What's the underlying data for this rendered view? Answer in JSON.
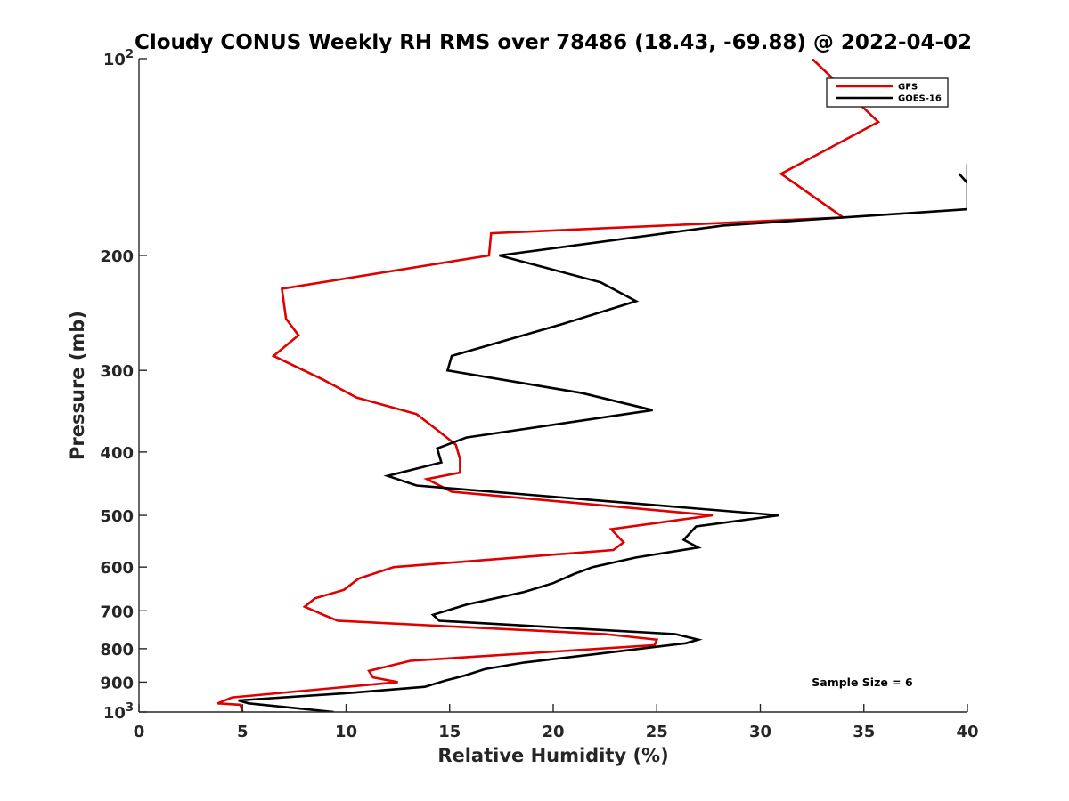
{
  "chart_data": {
    "type": "line",
    "title": "Cloudy CONUS Weekly RH RMS over 78486 (18.43, -69.88) @ 2022-04-02",
    "xlabel": "Relative Humidity (%)",
    "ylabel": "Pressure (mb)",
    "xlim": [
      0,
      40
    ],
    "ylim": [
      100,
      1000
    ],
    "y_scale": "log",
    "y_reversed": true,
    "x_ticks": [
      "0",
      "5",
      "10",
      "15",
      "20",
      "25",
      "30",
      "35",
      "40"
    ],
    "y_ticks": [
      {
        "value": 100,
        "base": "10",
        "exp": "2"
      },
      {
        "value": 200,
        "label": "200"
      },
      {
        "value": 300,
        "label": "300"
      },
      {
        "value": 400,
        "label": "400"
      },
      {
        "value": 500,
        "label": "500"
      },
      {
        "value": 600,
        "label": "600"
      },
      {
        "value": 700,
        "label": "700"
      },
      {
        "value": 800,
        "label": "800"
      },
      {
        "value": 900,
        "label": "900"
      },
      {
        "value": 1000,
        "base": "10",
        "exp": "3"
      }
    ],
    "grid": false,
    "legend_position": "top-right",
    "annotation": "Sample Size = 6",
    "series": [
      {
        "name": "GFS",
        "color": "#e00000",
        "points": [
          [
            32.5,
            100
          ],
          [
            35.7,
            125
          ],
          [
            31.0,
            150
          ],
          [
            34.0,
            175
          ],
          [
            17.0,
            185
          ],
          [
            16.9,
            200
          ],
          [
            6.9,
            225
          ],
          [
            7.1,
            250
          ],
          [
            7.7,
            265
          ],
          [
            6.5,
            285
          ],
          [
            8.9,
            310
          ],
          [
            10.5,
            330
          ],
          [
            13.4,
            350
          ],
          [
            14.4,
            370
          ],
          [
            15.3,
            390
          ],
          [
            15.5,
            410
          ],
          [
            15.5,
            430
          ],
          [
            13.9,
            440
          ],
          [
            15.1,
            460
          ],
          [
            27.7,
            500
          ],
          [
            22.8,
            525
          ],
          [
            23.4,
            550
          ],
          [
            22.9,
            565
          ],
          [
            12.3,
            600
          ],
          [
            10.6,
            625
          ],
          [
            9.9,
            650
          ],
          [
            8.5,
            670
          ],
          [
            8.0,
            690
          ],
          [
            8.9,
            710
          ],
          [
            9.6,
            725
          ],
          [
            22.5,
            760
          ],
          [
            25.0,
            775
          ],
          [
            24.9,
            790
          ],
          [
            13.1,
            835
          ],
          [
            11.1,
            865
          ],
          [
            11.3,
            885
          ],
          [
            12.5,
            900
          ],
          [
            4.5,
            950
          ],
          [
            3.8,
            970
          ],
          [
            4.9,
            975
          ],
          [
            5.0,
            1000
          ]
        ]
      },
      {
        "name": "GOES-16",
        "color": "#000000",
        "points": [
          [
            39.6,
            150
          ],
          [
            40.0,
            155
          ],
          [
            40.0,
            145
          ],
          [
            40.0,
            170
          ],
          [
            28.2,
            180
          ],
          [
            17.4,
            200
          ],
          [
            22.3,
            220
          ],
          [
            24.0,
            235
          ],
          [
            20.4,
            255
          ],
          [
            15.1,
            285
          ],
          [
            14.9,
            300
          ],
          [
            21.4,
            325
          ],
          [
            24.8,
            345
          ],
          [
            15.8,
            380
          ],
          [
            14.4,
            395
          ],
          [
            14.6,
            415
          ],
          [
            12.0,
            435
          ],
          [
            13.4,
            450
          ],
          [
            30.9,
            500
          ],
          [
            26.9,
            520
          ],
          [
            26.3,
            545
          ],
          [
            27.0,
            560
          ],
          [
            24.0,
            580
          ],
          [
            21.9,
            600
          ],
          [
            21.0,
            615
          ],
          [
            20.0,
            635
          ],
          [
            18.6,
            655
          ],
          [
            15.8,
            685
          ],
          [
            14.2,
            710
          ],
          [
            14.5,
            725
          ],
          [
            25.9,
            760
          ],
          [
            27.0,
            775
          ],
          [
            26.4,
            785
          ],
          [
            22.1,
            815
          ],
          [
            18.6,
            840
          ],
          [
            16.7,
            860
          ],
          [
            15.7,
            880
          ],
          [
            14.8,
            895
          ],
          [
            13.8,
            915
          ],
          [
            10.2,
            935
          ],
          [
            4.8,
            960
          ],
          [
            5.3,
            970
          ],
          [
            9.4,
            1000
          ]
        ]
      }
    ]
  }
}
